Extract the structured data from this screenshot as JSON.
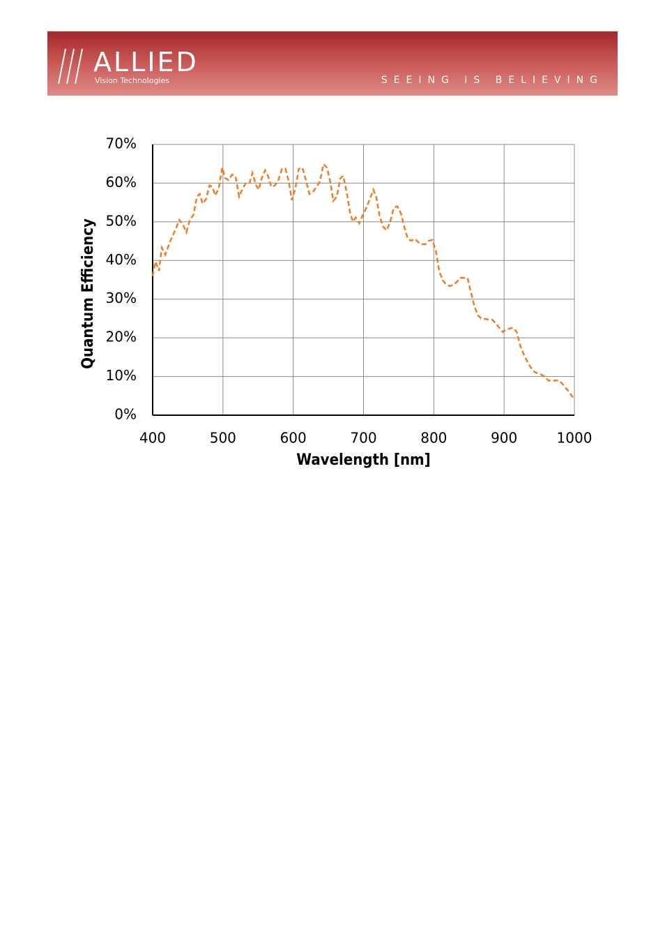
{
  "header": {
    "logo": "ALLIED",
    "logo_subtitle": "Vision Technologies",
    "tagline": "SEEING IS BELIEVING"
  },
  "chart_data": {
    "type": "line",
    "xlabel": "Wavelength [nm]",
    "ylabel": "Quantum Efficiency",
    "xlim": [
      400,
      1000
    ],
    "xticks": [
      400,
      500,
      600,
      700,
      800,
      900,
      1000
    ],
    "ylim": [
      0,
      70
    ],
    "yticks": [
      {
        "value": 0,
        "label": "0%"
      },
      {
        "value": 10,
        "label": "10%"
      },
      {
        "value": 20,
        "label": "20%"
      },
      {
        "value": 30,
        "label": "30%"
      },
      {
        "value": 40,
        "label": "40%"
      },
      {
        "value": 50,
        "label": "50%"
      },
      {
        "value": 60,
        "label": "60%"
      },
      {
        "value": 70,
        "label": "70%"
      }
    ],
    "grid": true,
    "dashed": true,
    "x": [
      400,
      404,
      409,
      413,
      418,
      425,
      432,
      438,
      443,
      448,
      453,
      458,
      463,
      467,
      471,
      476,
      481,
      485,
      489,
      494,
      499,
      503,
      508,
      513,
      518,
      523,
      528,
      533,
      538,
      542,
      547,
      551,
      555,
      560,
      564,
      569,
      574,
      579,
      584,
      589,
      594,
      598,
      603,
      608,
      613,
      618,
      623,
      628,
      633,
      638,
      643,
      648,
      653,
      657,
      662,
      667,
      671,
      676,
      681,
      685,
      689,
      694,
      699,
      704,
      709,
      714,
      718,
      723,
      728,
      733,
      738,
      743,
      748,
      753,
      758,
      763,
      768,
      773,
      778,
      783,
      788,
      793,
      798,
      803,
      808,
      813,
      818,
      823,
      828,
      833,
      838,
      843,
      848,
      853,
      858,
      863,
      868,
      873,
      878,
      883,
      888,
      893,
      898,
      903,
      908,
      913,
      918,
      923,
      928,
      933,
      938,
      943,
      948,
      953,
      958,
      963,
      968,
      973,
      978,
      983,
      988,
      993,
      1000
    ],
    "series": [
      {
        "color": "#ee7d23",
        "values": [
          36,
          39.7,
          37.3,
          43.3,
          41.5,
          45,
          47.8,
          50.5,
          49.3,
          47.3,
          50.5,
          51.8,
          56.5,
          57.2,
          54.7,
          55.9,
          59.4,
          59,
          56.8,
          58.6,
          64,
          61.3,
          60.8,
          62.2,
          61.7,
          56.5,
          58.6,
          60.1,
          60.1,
          62.6,
          59.5,
          58.3,
          61.2,
          63.3,
          61.9,
          59,
          59.4,
          60.8,
          63.7,
          63.7,
          60.1,
          55.6,
          58.6,
          63.7,
          64,
          60.8,
          57.2,
          57.7,
          59,
          60.4,
          64.9,
          64,
          60.1,
          55.4,
          56.5,
          61.2,
          61.9,
          57.7,
          52.3,
          50,
          51.1,
          49.6,
          51.8,
          53.6,
          55.9,
          58.3,
          56.5,
          51.4,
          48.7,
          47.8,
          50,
          53.6,
          54,
          52.3,
          48.7,
          45.6,
          45.1,
          45.6,
          44.7,
          44.2,
          44.2,
          45.1,
          45.3,
          42.4,
          37,
          34.8,
          33.7,
          33.4,
          33.7,
          34.5,
          35.5,
          35.5,
          35.5,
          31.6,
          28,
          25.8,
          24.9,
          24.9,
          24.7,
          24.7,
          23.8,
          22.6,
          21.5,
          22.1,
          22.4,
          22.6,
          21.5,
          18,
          15.7,
          13.9,
          12.3,
          11.2,
          10.8,
          10.5,
          9.9,
          9,
          8.8,
          9,
          9,
          8.1,
          7,
          5.9,
          4
        ]
      }
    ]
  }
}
